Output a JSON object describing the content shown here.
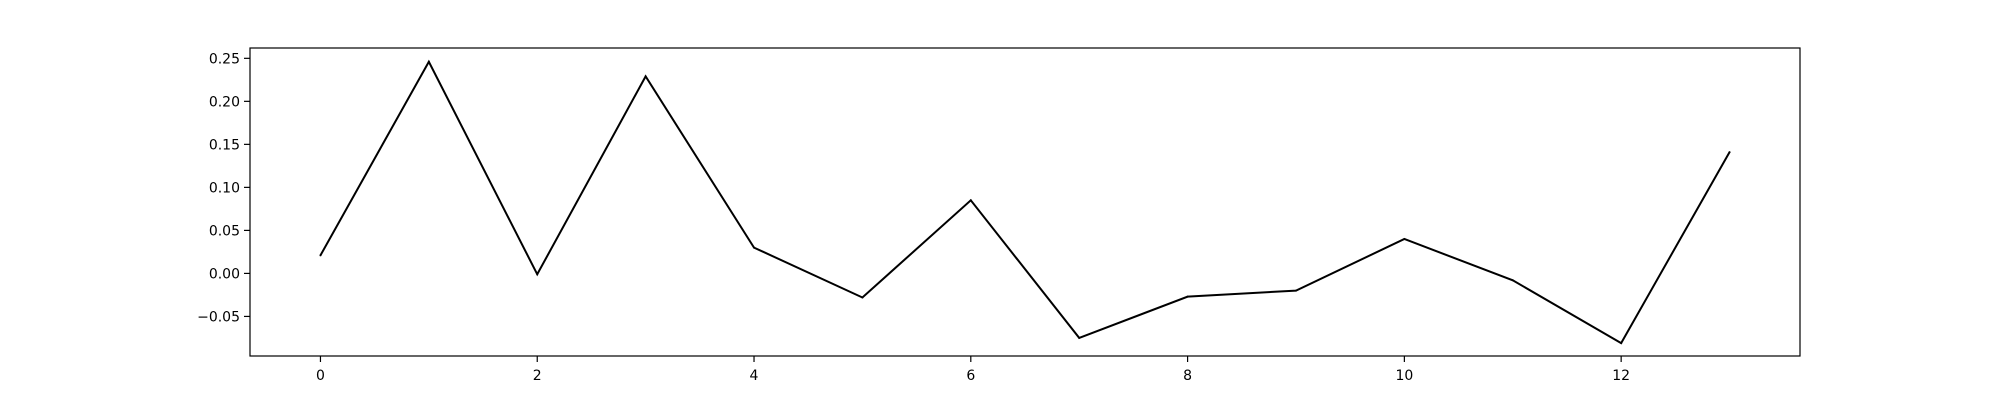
{
  "chart_data": {
    "type": "line",
    "title": "",
    "xlabel": "",
    "ylabel": "",
    "x": [
      0,
      1,
      2,
      3,
      4,
      5,
      6,
      7,
      8,
      9,
      10,
      11,
      12,
      13
    ],
    "series": [
      {
        "values": [
          0.021,
          0.246,
          -0.001,
          0.229,
          0.03,
          -0.028,
          0.085,
          -0.075,
          -0.027,
          -0.02,
          0.04,
          -0.008,
          -0.081,
          0.141
        ],
        "color": "#000000"
      }
    ],
    "xlim": [
      -0.65,
      13.65
    ],
    "ylim": [
      -0.096,
      0.262
    ],
    "xticks": [
      0,
      2,
      4,
      6,
      8,
      10,
      12
    ],
    "xtick_labels": [
      "0",
      "2",
      "4",
      "6",
      "8",
      "10",
      "12"
    ],
    "yticks": [
      -0.05,
      0.0,
      0.05,
      0.1,
      0.15,
      0.2,
      0.25
    ],
    "ytick_labels": [
      "−0.05",
      "0.00",
      "0.05",
      "0.10",
      "0.15",
      "0.20",
      "0.25"
    ],
    "grid": false,
    "legend": false
  }
}
